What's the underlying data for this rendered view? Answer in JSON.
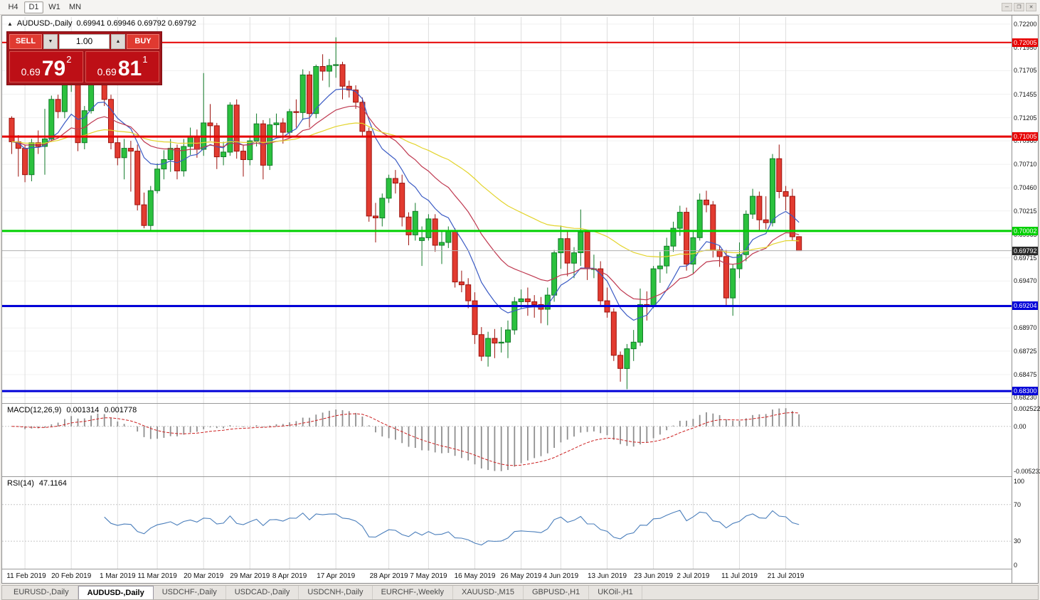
{
  "toolbar": {
    "timeframes": [
      {
        "label": "H4",
        "active": false
      },
      {
        "label": "D1",
        "active": true
      },
      {
        "label": "W1",
        "active": false
      },
      {
        "label": "MN",
        "active": false
      }
    ],
    "window_controls": [
      {
        "name": "minimize-icon",
        "glyph": "─"
      },
      {
        "name": "restore-icon",
        "glyph": "❐"
      },
      {
        "name": "close-icon",
        "glyph": "✕"
      }
    ]
  },
  "chart": {
    "title": {
      "icon_glyph": "▲",
      "symbol_period": "AUDUSD-,Daily",
      "ohlc": "0.69941 0.69946 0.69792 0.69792"
    }
  },
  "trade_panel": {
    "sell_label": "SELL",
    "buy_label": "BUY",
    "volume": "1.00",
    "vol_down_glyph": "▼",
    "vol_up_glyph": "▲",
    "bid": {
      "prefix": "0.69",
      "big": "79",
      "sup": "2"
    },
    "ask": {
      "prefix": "0.69",
      "big": "81",
      "sup": "1"
    }
  },
  "price_axis": {
    "labels": [
      "0.72200",
      "0.71950",
      "0.71705",
      "0.71455",
      "0.71205",
      "0.70960",
      "0.70710",
      "0.70460",
      "0.70215",
      "0.69965",
      "0.69715",
      "0.69470",
      "0.69220",
      "0.68970",
      "0.68725",
      "0.68475",
      "0.68230"
    ],
    "macd_scale": {
      "max": "0.0025224",
      "zero": "0.00",
      "min": "-0.0052324"
    },
    "rsi_scale": [
      "100",
      "70",
      "30",
      "0"
    ]
  },
  "levels": [
    {
      "price": 0.72005,
      "label": "0.72005",
      "color": "#e60000",
      "width": 2
    },
    {
      "price": 0.71005,
      "label": "0.71005",
      "color": "#e60000",
      "width": 3
    },
    {
      "price": 0.70002,
      "label": "0.70002",
      "color": "#00d000",
      "width": 3
    },
    {
      "price": 0.69204,
      "label": "0.69204",
      "color": "#0000d8",
      "width": 3
    },
    {
      "price": 0.683,
      "label": "0.68300",
      "color": "#0000d8",
      "width": 3
    }
  ],
  "current_price": {
    "label": "0.69792",
    "value": 0.69792,
    "badge_color": "#2a2a2a",
    "line_color": "#b0b0b0"
  },
  "indicators": {
    "macd": {
      "name": "MACD(12,26,9)",
      "value_main": "0.001314",
      "value_signal": "0.001778",
      "fast": 12,
      "slow": 26,
      "signal": 9
    },
    "rsi": {
      "name": "RSI(14)",
      "value": "47.1164",
      "period": 14,
      "levels": [
        70,
        30
      ]
    },
    "moving_averages": [
      {
        "period": 10,
        "color": "#3b5bc4"
      },
      {
        "period": 22,
        "color": "#bf3950"
      },
      {
        "period": 55,
        "color": "#e3d42c"
      }
    ]
  },
  "chart_data": {
    "type": "candlestick",
    "title": "AUDUSD Daily",
    "symbol": "AUDUSD-",
    "timeframe": "Daily",
    "price_range": {
      "min": 0.6818,
      "max": 0.7226
    },
    "ohlc_format": [
      "open",
      "high",
      "low",
      "close"
    ],
    "candles": [
      [
        0.712,
        0.7122,
        0.7082,
        0.7095
      ],
      [
        0.7095,
        0.7102,
        0.7058,
        0.7088
      ],
      [
        0.7088,
        0.7092,
        0.7052,
        0.706
      ],
      [
        0.706,
        0.7098,
        0.7053,
        0.7094
      ],
      [
        0.7094,
        0.7107,
        0.7082,
        0.709
      ],
      [
        0.709,
        0.713,
        0.706,
        0.7098
      ],
      [
        0.7098,
        0.7144,
        0.7095,
        0.714
      ],
      [
        0.714,
        0.7145,
        0.712,
        0.7127
      ],
      [
        0.7127,
        0.7168,
        0.712,
        0.7162
      ],
      [
        0.7162,
        0.7182,
        0.7148,
        0.7166
      ],
      [
        0.7166,
        0.717,
        0.7085,
        0.7094
      ],
      [
        0.7094,
        0.7133,
        0.7087,
        0.7128
      ],
      [
        0.7128,
        0.7175,
        0.7125,
        0.717
      ],
      [
        0.717,
        0.719,
        0.7158,
        0.7168
      ],
      [
        0.7168,
        0.7172,
        0.7133,
        0.714
      ],
      [
        0.714,
        0.7145,
        0.7087,
        0.7094
      ],
      [
        0.7094,
        0.71,
        0.707,
        0.7078
      ],
      [
        0.7078,
        0.7098,
        0.7055,
        0.7088
      ],
      [
        0.7088,
        0.7096,
        0.7042,
        0.7085
      ],
      [
        0.7085,
        0.7092,
        0.7022,
        0.7028
      ],
      [
        0.7028,
        0.7041,
        0.7003,
        0.7006
      ],
      [
        0.7006,
        0.7048,
        0.7,
        0.7043
      ],
      [
        0.7043,
        0.7072,
        0.704,
        0.7066
      ],
      [
        0.7066,
        0.7086,
        0.7055,
        0.7076
      ],
      [
        0.7076,
        0.7098,
        0.7063,
        0.7088
      ],
      [
        0.7088,
        0.7092,
        0.7055,
        0.7064
      ],
      [
        0.7064,
        0.7098,
        0.7058,
        0.709
      ],
      [
        0.709,
        0.711,
        0.7081,
        0.71
      ],
      [
        0.71,
        0.7108,
        0.7078,
        0.7087
      ],
      [
        0.7087,
        0.7168,
        0.708,
        0.7115
      ],
      [
        0.7115,
        0.7135,
        0.7096,
        0.7112
      ],
      [
        0.7112,
        0.7115,
        0.7066,
        0.7079
      ],
      [
        0.7079,
        0.7095,
        0.707,
        0.7084
      ],
      [
        0.7084,
        0.7137,
        0.708,
        0.7134
      ],
      [
        0.7134,
        0.714,
        0.7077,
        0.7085
      ],
      [
        0.7085,
        0.7092,
        0.7058,
        0.7076
      ],
      [
        0.7076,
        0.71,
        0.707,
        0.7096
      ],
      [
        0.7096,
        0.7125,
        0.709,
        0.7114
      ],
      [
        0.7114,
        0.7118,
        0.7055,
        0.707
      ],
      [
        0.707,
        0.712,
        0.7065,
        0.7113
      ],
      [
        0.7113,
        0.7125,
        0.71,
        0.7115
      ],
      [
        0.7115,
        0.712,
        0.7093,
        0.7105
      ],
      [
        0.7105,
        0.713,
        0.71,
        0.7127
      ],
      [
        0.7127,
        0.714,
        0.711,
        0.7126
      ],
      [
        0.7126,
        0.7172,
        0.7118,
        0.7166
      ],
      [
        0.7166,
        0.717,
        0.711,
        0.7125
      ],
      [
        0.7125,
        0.7177,
        0.712,
        0.7175
      ],
      [
        0.7175,
        0.7188,
        0.716,
        0.717
      ],
      [
        0.717,
        0.7183,
        0.7153,
        0.7176
      ],
      [
        0.7176,
        0.7206,
        0.7163,
        0.7177
      ],
      [
        0.7177,
        0.718,
        0.714,
        0.7154
      ],
      [
        0.7154,
        0.716,
        0.7142,
        0.715
      ],
      [
        0.715,
        0.7155,
        0.713,
        0.7137
      ],
      [
        0.7137,
        0.7142,
        0.71,
        0.7106
      ],
      [
        0.7106,
        0.711,
        0.701,
        0.7016
      ],
      [
        0.7016,
        0.703,
        0.6988,
        0.7014
      ],
      [
        0.7014,
        0.704,
        0.7005,
        0.7035
      ],
      [
        0.7035,
        0.706,
        0.703,
        0.7056
      ],
      [
        0.7056,
        0.7065,
        0.704,
        0.7051
      ],
      [
        0.7051,
        0.706,
        0.7005,
        0.7015
      ],
      [
        0.7015,
        0.702,
        0.6985,
        0.6996
      ],
      [
        0.6996,
        0.703,
        0.699,
        0.7021
      ],
      [
        0.699,
        0.7005,
        0.6963,
        0.6993
      ],
      [
        0.6993,
        0.7018,
        0.699,
        0.7013
      ],
      [
        0.7013,
        0.7018,
        0.6978,
        0.6985
      ],
      [
        0.6985,
        0.7,
        0.6965,
        0.6988
      ],
      [
        0.6988,
        0.7005,
        0.6982,
        0.7
      ],
      [
        0.7,
        0.7003,
        0.694,
        0.6946
      ],
      [
        0.6946,
        0.6958,
        0.6935,
        0.6943
      ],
      [
        0.6943,
        0.695,
        0.6918,
        0.6926
      ],
      [
        0.6926,
        0.6935,
        0.688,
        0.689
      ],
      [
        0.689,
        0.6898,
        0.6862,
        0.6867
      ],
      [
        0.6867,
        0.6893,
        0.6856,
        0.6886
      ],
      [
        0.6886,
        0.6896,
        0.6865,
        0.6881
      ],
      [
        0.6881,
        0.6898,
        0.6871,
        0.6882
      ],
      [
        0.6882,
        0.6905,
        0.6865,
        0.6895
      ],
      [
        0.6895,
        0.693,
        0.689,
        0.6925
      ],
      [
        0.6925,
        0.6938,
        0.6918,
        0.6928
      ],
      [
        0.6928,
        0.694,
        0.691,
        0.6925
      ],
      [
        0.6925,
        0.6932,
        0.6908,
        0.6922
      ],
      [
        0.6922,
        0.693,
        0.6902,
        0.6917
      ],
      [
        0.6917,
        0.694,
        0.69,
        0.6932
      ],
      [
        0.6932,
        0.698,
        0.6925,
        0.6977
      ],
      [
        0.6977,
        0.7006,
        0.696,
        0.6992
      ],
      [
        0.6992,
        0.7,
        0.6952,
        0.6966
      ],
      [
        0.6966,
        0.6983,
        0.695,
        0.6977
      ],
      [
        0.6977,
        0.7023,
        0.6963,
        0.6999
      ],
      [
        0.6999,
        0.7,
        0.6948,
        0.696
      ],
      [
        0.696,
        0.6975,
        0.695,
        0.696
      ],
      [
        0.696,
        0.6968,
        0.692,
        0.6926
      ],
      [
        0.6926,
        0.694,
        0.6908,
        0.6914
      ],
      [
        0.6914,
        0.6918,
        0.6862,
        0.6868
      ],
      [
        0.6868,
        0.6872,
        0.684,
        0.6854
      ],
      [
        0.6854,
        0.688,
        0.6832,
        0.6875
      ],
      [
        0.6875,
        0.6895,
        0.6862,
        0.6882
      ],
      [
        0.6882,
        0.6939,
        0.6878,
        0.6922
      ],
      [
        0.6922,
        0.6936,
        0.6905,
        0.6921
      ],
      [
        0.6921,
        0.6963,
        0.6918,
        0.696
      ],
      [
        0.696,
        0.6978,
        0.6945,
        0.6963
      ],
      [
        0.6963,
        0.6993,
        0.6955,
        0.6984
      ],
      [
        0.6984,
        0.701,
        0.6978,
        0.7003
      ],
      [
        0.7003,
        0.7027,
        0.6995,
        0.702
      ],
      [
        0.702,
        0.7025,
        0.6958,
        0.6965
      ],
      [
        0.6965,
        0.7,
        0.6955,
        0.6993
      ],
      [
        0.6993,
        0.704,
        0.699,
        0.7033
      ],
      [
        0.7033,
        0.7043,
        0.702,
        0.7028
      ],
      [
        0.7028,
        0.7032,
        0.6972,
        0.698
      ],
      [
        0.698,
        0.6985,
        0.6962,
        0.6973
      ],
      [
        0.6973,
        0.698,
        0.692,
        0.6929
      ],
      [
        0.6929,
        0.6965,
        0.691,
        0.696
      ],
      [
        0.696,
        0.6988,
        0.695,
        0.6975
      ],
      [
        0.6975,
        0.7022,
        0.6968,
        0.7018
      ],
      [
        0.7018,
        0.7045,
        0.7013,
        0.7037
      ],
      [
        0.7037,
        0.7042,
        0.7,
        0.7012
      ],
      [
        0.7012,
        0.7037,
        0.7002,
        0.7009
      ],
      [
        0.7009,
        0.7082,
        0.7005,
        0.7077
      ],
      [
        0.7077,
        0.7092,
        0.7035,
        0.7042
      ],
      [
        0.7042,
        0.7048,
        0.7022,
        0.7037
      ],
      [
        0.7037,
        0.7045,
        0.699,
        0.6994
      ],
      [
        0.69941,
        0.69946,
        0.69792,
        0.69792
      ]
    ],
    "x_axis_labels": [
      {
        "label": "11 Feb 2019",
        "index": 2
      },
      {
        "label": "20 Feb 2019",
        "index": 9
      },
      {
        "label": "1 Mar 2019",
        "index": 16
      },
      {
        "label": "11 Mar 2019",
        "index": 22
      },
      {
        "label": "20 Mar 2019",
        "index": 29
      },
      {
        "label": "29 Mar 2019",
        "index": 36
      },
      {
        "label": "8 Apr 2019",
        "index": 42
      },
      {
        "label": "17 Apr 2019",
        "index": 49
      },
      {
        "label": "28 Apr 2019",
        "index": 57
      },
      {
        "label": "7 May 2019",
        "index": 63
      },
      {
        "label": "16 May 2019",
        "index": 70
      },
      {
        "label": "26 May 2019",
        "index": 77
      },
      {
        "label": "4 Jun 2019",
        "index": 83
      },
      {
        "label": "13 Jun 2019",
        "index": 90
      },
      {
        "label": "23 Jun 2019",
        "index": 97
      },
      {
        "label": "2 Jul 2019",
        "index": 103
      },
      {
        "label": "11 Jul 2019",
        "index": 110
      },
      {
        "label": "21 Jul 2019",
        "index": 117
      }
    ]
  },
  "tab_bar": {
    "tabs": [
      {
        "label": "EURUSD-,Daily",
        "active": false
      },
      {
        "label": "AUDUSD-,Daily",
        "active": true
      },
      {
        "label": "USDCHF-,Daily",
        "active": false
      },
      {
        "label": "USDCAD-,Daily",
        "active": false
      },
      {
        "label": "USDCNH-,Daily",
        "active": false
      },
      {
        "label": "EURCHF-,Weekly",
        "active": false
      },
      {
        "label": "XAUUSD-,M15",
        "active": false
      },
      {
        "label": "GBPUSD-,H1",
        "active": false
      },
      {
        "label": "UKOil-,H1",
        "active": false
      }
    ]
  }
}
